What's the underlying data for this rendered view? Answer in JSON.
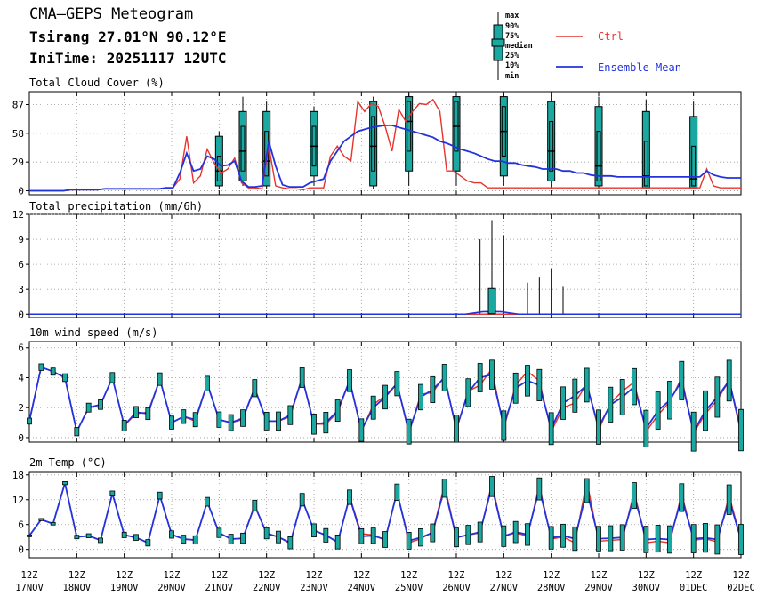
{
  "header": {
    "title": "CMA—GEPS Meteogram",
    "location": "Tsirang 27.01°N 90.12°E",
    "init_time": "IniTime: 20251117 12UTC"
  },
  "legend": {
    "box_labels": [
      "max",
      "90%",
      "75%",
      "median",
      "25%",
      "10%",
      "min"
    ],
    "ctrl_label": "Ctrl",
    "mean_label": "Ensemble Mean"
  },
  "colors": {
    "ctrl": "#e8332f",
    "mean": "#2233dd",
    "box": "#1aa8a0",
    "box_edge": "#000000",
    "grid": "#9a9a9a"
  },
  "x_axis": {
    "ticks": [
      "12Z\n17NOV",
      "12Z\n18NOV",
      "12Z\n19NOV",
      "12Z\n20NOV",
      "12Z\n21NOV",
      "12Z\n22NOV",
      "12Z\n23NOV",
      "12Z\n24NOV",
      "12Z\n25NOV",
      "12Z\n26NOV",
      "12Z\n27NOV",
      "12Z\n28NOV",
      "12Z\n29NOV",
      "12Z\n30NOV",
      "12Z\n01DEC",
      "12Z\n02DEC"
    ],
    "start": "2025-11-17 12Z",
    "end": "2025-12-02 12Z",
    "step_hours": 6
  },
  "chart_data": [
    {
      "type": "line",
      "title": "Total Cloud Cover (%)",
      "ylim": [
        -4,
        100
      ],
      "yticks": [
        0,
        29,
        58,
        87
      ],
      "grid": true,
      "ctrl": [
        0,
        0,
        0,
        0,
        0,
        0,
        1,
        1,
        1,
        1,
        1,
        2,
        2,
        2,
        2,
        2,
        2,
        2,
        2,
        2,
        3,
        3,
        12,
        55,
        8,
        15,
        42,
        28,
        18,
        22,
        33,
        8,
        3,
        3,
        2,
        45,
        5,
        3,
        2,
        2,
        1,
        3,
        3,
        3,
        35,
        45,
        35,
        30,
        90,
        80,
        88,
        85,
        65,
        40,
        82,
        70,
        80,
        88,
        87,
        92,
        80,
        20,
        20,
        15,
        10,
        8,
        8,
        3,
        3,
        3,
        3,
        3,
        3,
        3,
        3,
        3,
        3,
        3,
        3,
        3,
        3,
        3,
        3,
        3,
        3,
        3,
        3,
        3,
        3,
        3,
        3,
        3,
        3,
        3,
        3,
        3,
        3,
        3,
        3,
        22,
        5,
        3,
        3,
        3,
        3
      ],
      "mean": [
        0,
        0,
        0,
        0,
        0,
        0,
        1,
        1,
        1,
        1,
        1,
        2,
        2,
        2,
        2,
        2,
        2,
        2,
        2,
        2,
        3,
        3,
        18,
        38,
        20,
        22,
        35,
        32,
        25,
        26,
        30,
        10,
        4,
        4,
        5,
        50,
        25,
        6,
        4,
        4,
        4,
        8,
        10,
        12,
        30,
        40,
        50,
        55,
        60,
        62,
        64,
        65,
        66,
        66,
        64,
        62,
        60,
        58,
        56,
        54,
        50,
        48,
        45,
        42,
        40,
        38,
        35,
        32,
        30,
        30,
        28,
        28,
        26,
        25,
        24,
        22,
        22,
        22,
        20,
        20,
        18,
        18,
        16,
        15,
        15,
        15,
        14,
        14,
        14,
        14,
        14,
        14,
        14,
        14,
        14,
        14,
        14,
        14,
        14,
        20,
        16,
        14,
        13,
        13,
        13
      ],
      "boxes": [
        {
          "x": "2025-11-21 12Z",
          "min": 2,
          "p10": 5,
          "p25": 10,
          "median": 20,
          "p75": 35,
          "p90": 55,
          "max": 60
        },
        {
          "x": "2025-11-22 00Z",
          "min": 5,
          "p10": 10,
          "p25": 20,
          "median": 40,
          "p75": 65,
          "p90": 80,
          "max": 95
        },
        {
          "x": "2025-11-22 12Z",
          "min": 2,
          "p10": 5,
          "p25": 15,
          "median": 30,
          "p75": 60,
          "p90": 80,
          "max": 90
        },
        {
          "x": "2025-11-23 12Z",
          "min": 5,
          "p10": 15,
          "p25": 25,
          "median": 45,
          "p75": 65,
          "p90": 80,
          "max": 85
        },
        {
          "x": "2025-11-24 18Z",
          "min": 2,
          "p10": 5,
          "p25": 20,
          "median": 45,
          "p75": 75,
          "p90": 90,
          "max": 95
        },
        {
          "x": "2025-11-25 12Z",
          "min": 5,
          "p10": 20,
          "p25": 40,
          "median": 70,
          "p75": 90,
          "p90": 95,
          "max": 98
        },
        {
          "x": "2025-11-26 12Z",
          "min": 5,
          "p10": 20,
          "p25": 40,
          "median": 65,
          "p75": 90,
          "p90": 95,
          "max": 98
        },
        {
          "x": "2025-11-27 12Z",
          "min": 5,
          "p10": 15,
          "p25": 35,
          "median": 60,
          "p75": 85,
          "p90": 95,
          "max": 98
        },
        {
          "x": "2025-11-28 12Z",
          "min": 3,
          "p10": 10,
          "p25": 20,
          "median": 40,
          "p75": 70,
          "p90": 90,
          "max": 96
        },
        {
          "x": "2025-11-29 12Z",
          "min": 2,
          "p10": 5,
          "p25": 10,
          "median": 25,
          "p75": 60,
          "p90": 85,
          "max": 95
        },
        {
          "x": "2025-11-30 12Z",
          "min": 2,
          "p10": 3,
          "p25": 5,
          "median": 15,
          "p75": 50,
          "p90": 80,
          "max": 92
        },
        {
          "x": "2025-12-01 12Z",
          "min": 2,
          "p10": 3,
          "p25": 5,
          "median": 12,
          "p75": 45,
          "p90": 75,
          "max": 90
        }
      ]
    },
    {
      "type": "line",
      "title": "Total precipitation (mm/6h)",
      "ylim": [
        -0.4,
        12
      ],
      "yticks": [
        0,
        3,
        6,
        9,
        12
      ],
      "grid": true,
      "ctrl_mean_baseline": 0,
      "spikes": [
        {
          "x": "2025-11-27 00Z",
          "max": 9.0
        },
        {
          "x": "2025-11-27 06Z",
          "max": 11.3
        },
        {
          "x": "2025-11-27 12Z",
          "max": 9.5
        },
        {
          "x": "2025-11-28 00Z",
          "max": 3.8
        },
        {
          "x": "2025-11-28 06Z",
          "max": 4.5
        },
        {
          "x": "2025-11-28 12Z",
          "max": 5.5
        },
        {
          "x": "2025-11-28 18Z",
          "max": 3.3
        }
      ],
      "mean_bump": {
        "x": "2025-11-27 06Z",
        "value": 0.3
      }
    },
    {
      "type": "line",
      "title": "10m wind speed (m/s)",
      "ylim": [
        -0.3,
        6.4
      ],
      "yticks": [
        0,
        2,
        4,
        6
      ],
      "grid": true,
      "ctrl": [
        1.1,
        4.7,
        4.4,
        4.0,
        0.4,
        2.0,
        2.2,
        4.0,
        0.8,
        1.6,
        1.7,
        3.9,
        1.0,
        1.4,
        1.1,
        3.6,
        1.2,
        1.0,
        1.2,
        3.3,
        1.1,
        1.1,
        1.4,
        4.0,
        0.9,
        0.9,
        1.7,
        3.8,
        0.4,
        2.2,
        2.8,
        3.6,
        0.3,
        2.9,
        3.0,
        4.1,
        0.5,
        3.1,
        3.5,
        4.6,
        0.6,
        3.5,
        4.4,
        3.8,
        0.4,
        2.0,
        2.3,
        3.6,
        0.5,
        2.3,
        3.1,
        3.7,
        0.4,
        1.5,
        2.4,
        4.0,
        0.3,
        1.6,
        2.5,
        3.8,
        0.3
      ],
      "mean": [
        1.1,
        4.7,
        4.4,
        4.0,
        0.4,
        2.0,
        2.2,
        4.0,
        0.8,
        1.7,
        1.6,
        3.9,
        1.0,
        1.4,
        1.2,
        3.6,
        1.2,
        1.0,
        1.3,
        3.3,
        1.1,
        1.1,
        1.5,
        4.0,
        0.9,
        1.0,
        1.8,
        3.8,
        0.5,
        2.0,
        2.7,
        3.6,
        0.4,
        2.7,
        3.2,
        4.0,
        0.6,
        3.0,
        4.0,
        4.2,
        0.8,
        3.3,
        3.8,
        3.5,
        0.6,
        2.3,
        2.8,
        3.5,
        0.7,
        2.2,
        2.7,
        3.4,
        0.6,
        1.8,
        2.5,
        3.8,
        0.4,
        1.8,
        2.7,
        3.8,
        0.5
      ]
    },
    {
      "type": "line",
      "title": "2m Temp (°C)",
      "ylim": [
        -2,
        18.6
      ],
      "yticks": [
        0,
        6,
        12,
        18
      ],
      "grid": true,
      "ctrl": [
        3.3,
        7.2,
        6.2,
        16.0,
        3.0,
        3.3,
        2.2,
        13.5,
        3.5,
        2.8,
        1.6,
        13.0,
        3.6,
        2.5,
        2.2,
        11.5,
        4.0,
        2.5,
        2.6,
        10.5,
        3.8,
        3.0,
        1.4,
        12.0,
        4.5,
        3.5,
        1.6,
        12.8,
        3.8,
        3.5,
        2.2,
        14.0,
        1.6,
        2.6,
        4.2,
        15.5,
        3.0,
        3.5,
        4.0,
        16.0,
        3.2,
        4.0,
        3.2,
        15.5,
        2.5,
        3.0,
        1.6,
        16.5,
        2.0,
        2.2,
        2.4,
        14.0,
        1.6,
        2.0,
        1.6,
        13.5,
        2.2,
        2.6,
        1.8,
        13.0,
        2.4
      ],
      "mean": [
        3.3,
        7.2,
        6.2,
        16.0,
        3.0,
        3.3,
        2.2,
        13.5,
        3.5,
        2.9,
        1.6,
        13.0,
        3.6,
        2.5,
        2.3,
        11.5,
        4.0,
        2.5,
        2.7,
        10.6,
        3.9,
        3.0,
        1.6,
        12.0,
        4.6,
        3.4,
        1.8,
        12.6,
        3.2,
        3.3,
        2.4,
        13.8,
        2.1,
        2.9,
        4.0,
        14.8,
        2.9,
        3.5,
        4.2,
        15.2,
        3.2,
        4.2,
        3.6,
        14.6,
        2.8,
        3.3,
        2.6,
        14.2,
        2.6,
        2.7,
        2.9,
        13.0,
        2.4,
        2.6,
        2.4,
        12.5,
        2.6,
        2.8,
        2.4,
        12.0,
        2.4
      ]
    }
  ]
}
